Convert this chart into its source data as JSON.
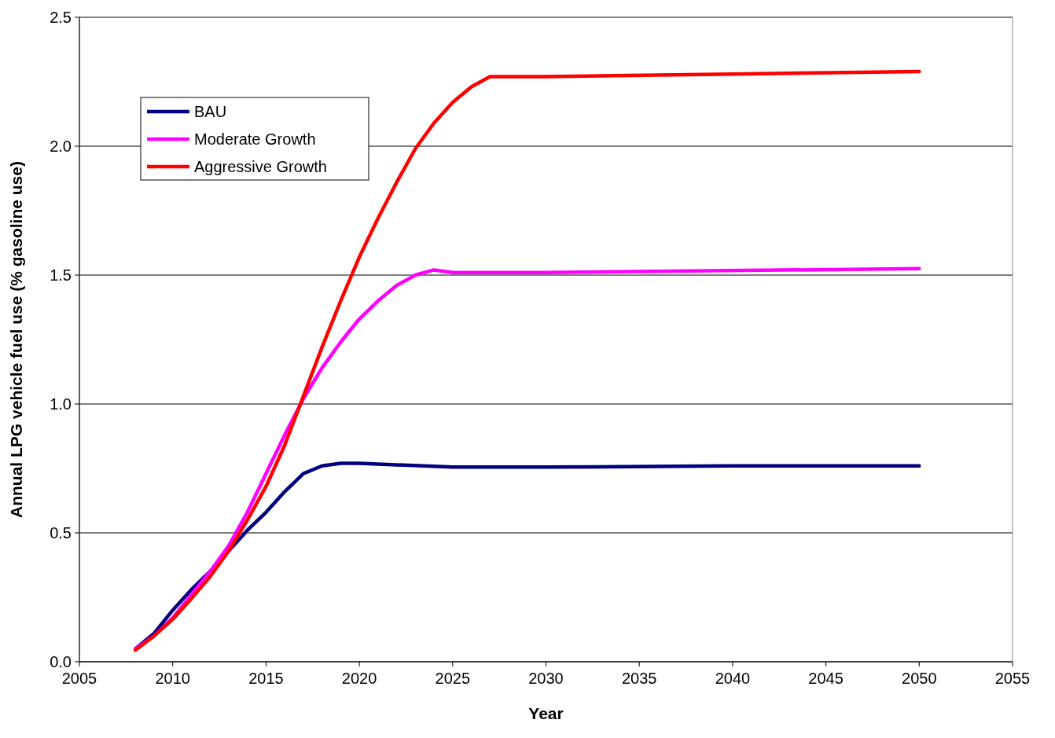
{
  "chart_data": {
    "type": "line",
    "xlabel": "Year",
    "ylabel": "Annual LPG vehicle fuel use (% gasoline use)",
    "xlim": [
      2005,
      2055
    ],
    "xticks": [
      2005,
      2010,
      2015,
      2020,
      2025,
      2030,
      2035,
      2040,
      2045,
      2050,
      2055
    ],
    "ylim": [
      0,
      2.5
    ],
    "yticks": [
      {
        "value": 0,
        "label": "0.0"
      },
      {
        "value": 0.5,
        "label": "0.5"
      },
      {
        "value": 1,
        "label": "1.0"
      },
      {
        "value": 1.5,
        "label": "1.5"
      },
      {
        "value": 2,
        "label": "2.0"
      },
      {
        "value": 2.5,
        "label": "2.5"
      }
    ],
    "grid": "y",
    "legend": "top left",
    "marker": "none",
    "line_style": "solid",
    "series": [
      {
        "name": "BAU",
        "color": "#000080",
        "x": [
          2008,
          2009,
          2010,
          2011,
          2012,
          2013,
          2014,
          2015,
          2016,
          2017,
          2018,
          2019,
          2020,
          2025,
          2030,
          2040,
          2050
        ],
        "values": [
          0.05,
          0.11,
          0.2,
          0.28,
          0.35,
          0.43,
          0.51,
          0.58,
          0.66,
          0.73,
          0.76,
          0.77,
          0.77,
          0.755,
          0.755,
          0.76,
          0.76
        ]
      },
      {
        "name": "Moderate Growth",
        "color": "#ff00ff",
        "x": [
          2008,
          2009,
          2010,
          2011,
          2012,
          2013,
          2014,
          2015,
          2016,
          2017,
          2018,
          2019,
          2020,
          2021,
          2022,
          2023,
          2024,
          2025,
          2030,
          2050
        ],
        "values": [
          0.05,
          0.1,
          0.17,
          0.26,
          0.35,
          0.45,
          0.58,
          0.73,
          0.88,
          1.02,
          1.14,
          1.24,
          1.33,
          1.4,
          1.46,
          1.5,
          1.52,
          1.51,
          1.51,
          1.525
        ]
      },
      {
        "name": "Aggressive Growth",
        "color": "#ff0000",
        "x": [
          2008,
          2009,
          2010,
          2011,
          2012,
          2013,
          2014,
          2015,
          2016,
          2017,
          2018,
          2019,
          2020,
          2021,
          2022,
          2023,
          2024,
          2025,
          2026,
          2027,
          2030,
          2040,
          2050
        ],
        "values": [
          0.045,
          0.1,
          0.165,
          0.245,
          0.33,
          0.43,
          0.55,
          0.68,
          0.84,
          1.03,
          1.22,
          1.4,
          1.57,
          1.72,
          1.86,
          1.99,
          2.09,
          2.17,
          2.23,
          2.27,
          2.27,
          2.28,
          2.29
        ]
      }
    ]
  }
}
